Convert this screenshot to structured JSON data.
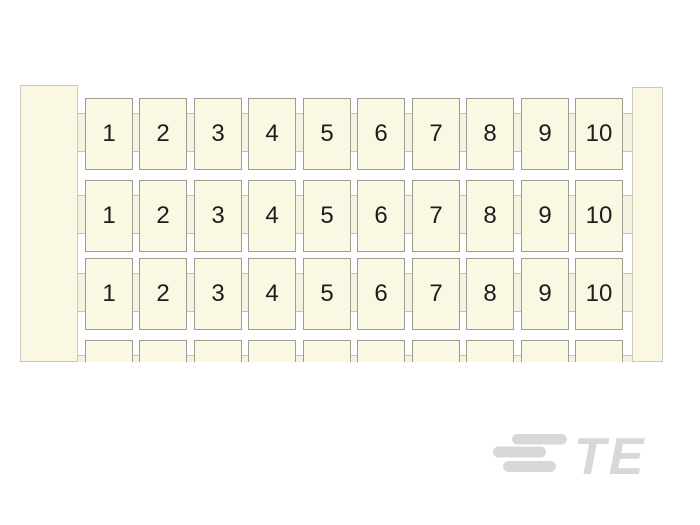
{
  "marker_strip": {
    "columns": 10,
    "rows": [
      {
        "labels": [
          "1",
          "2",
          "3",
          "4",
          "5",
          "6",
          "7",
          "8",
          "9",
          "10"
        ],
        "partial": false
      },
      {
        "labels": [
          "1",
          "2",
          "3",
          "4",
          "5",
          "6",
          "7",
          "8",
          "9",
          "10"
        ],
        "partial": false
      },
      {
        "labels": [
          "1",
          "2",
          "3",
          "4",
          "5",
          "6",
          "7",
          "8",
          "9",
          "10"
        ],
        "partial": false
      },
      {
        "labels": [],
        "partial": true
      }
    ],
    "colors": {
      "cell_fill": "#faf7e2",
      "cell_border": "#9e9d91",
      "tab_fill": "#f5f2e1",
      "tab_border": "#c6c3b3",
      "rail_fill": "#faf7e2",
      "rail_border": "#ccc9b8",
      "number_color": "#1d1d1d",
      "background": "#ffffff"
    }
  },
  "logo": {
    "text": "TE",
    "color": "#d8d8d8"
  }
}
